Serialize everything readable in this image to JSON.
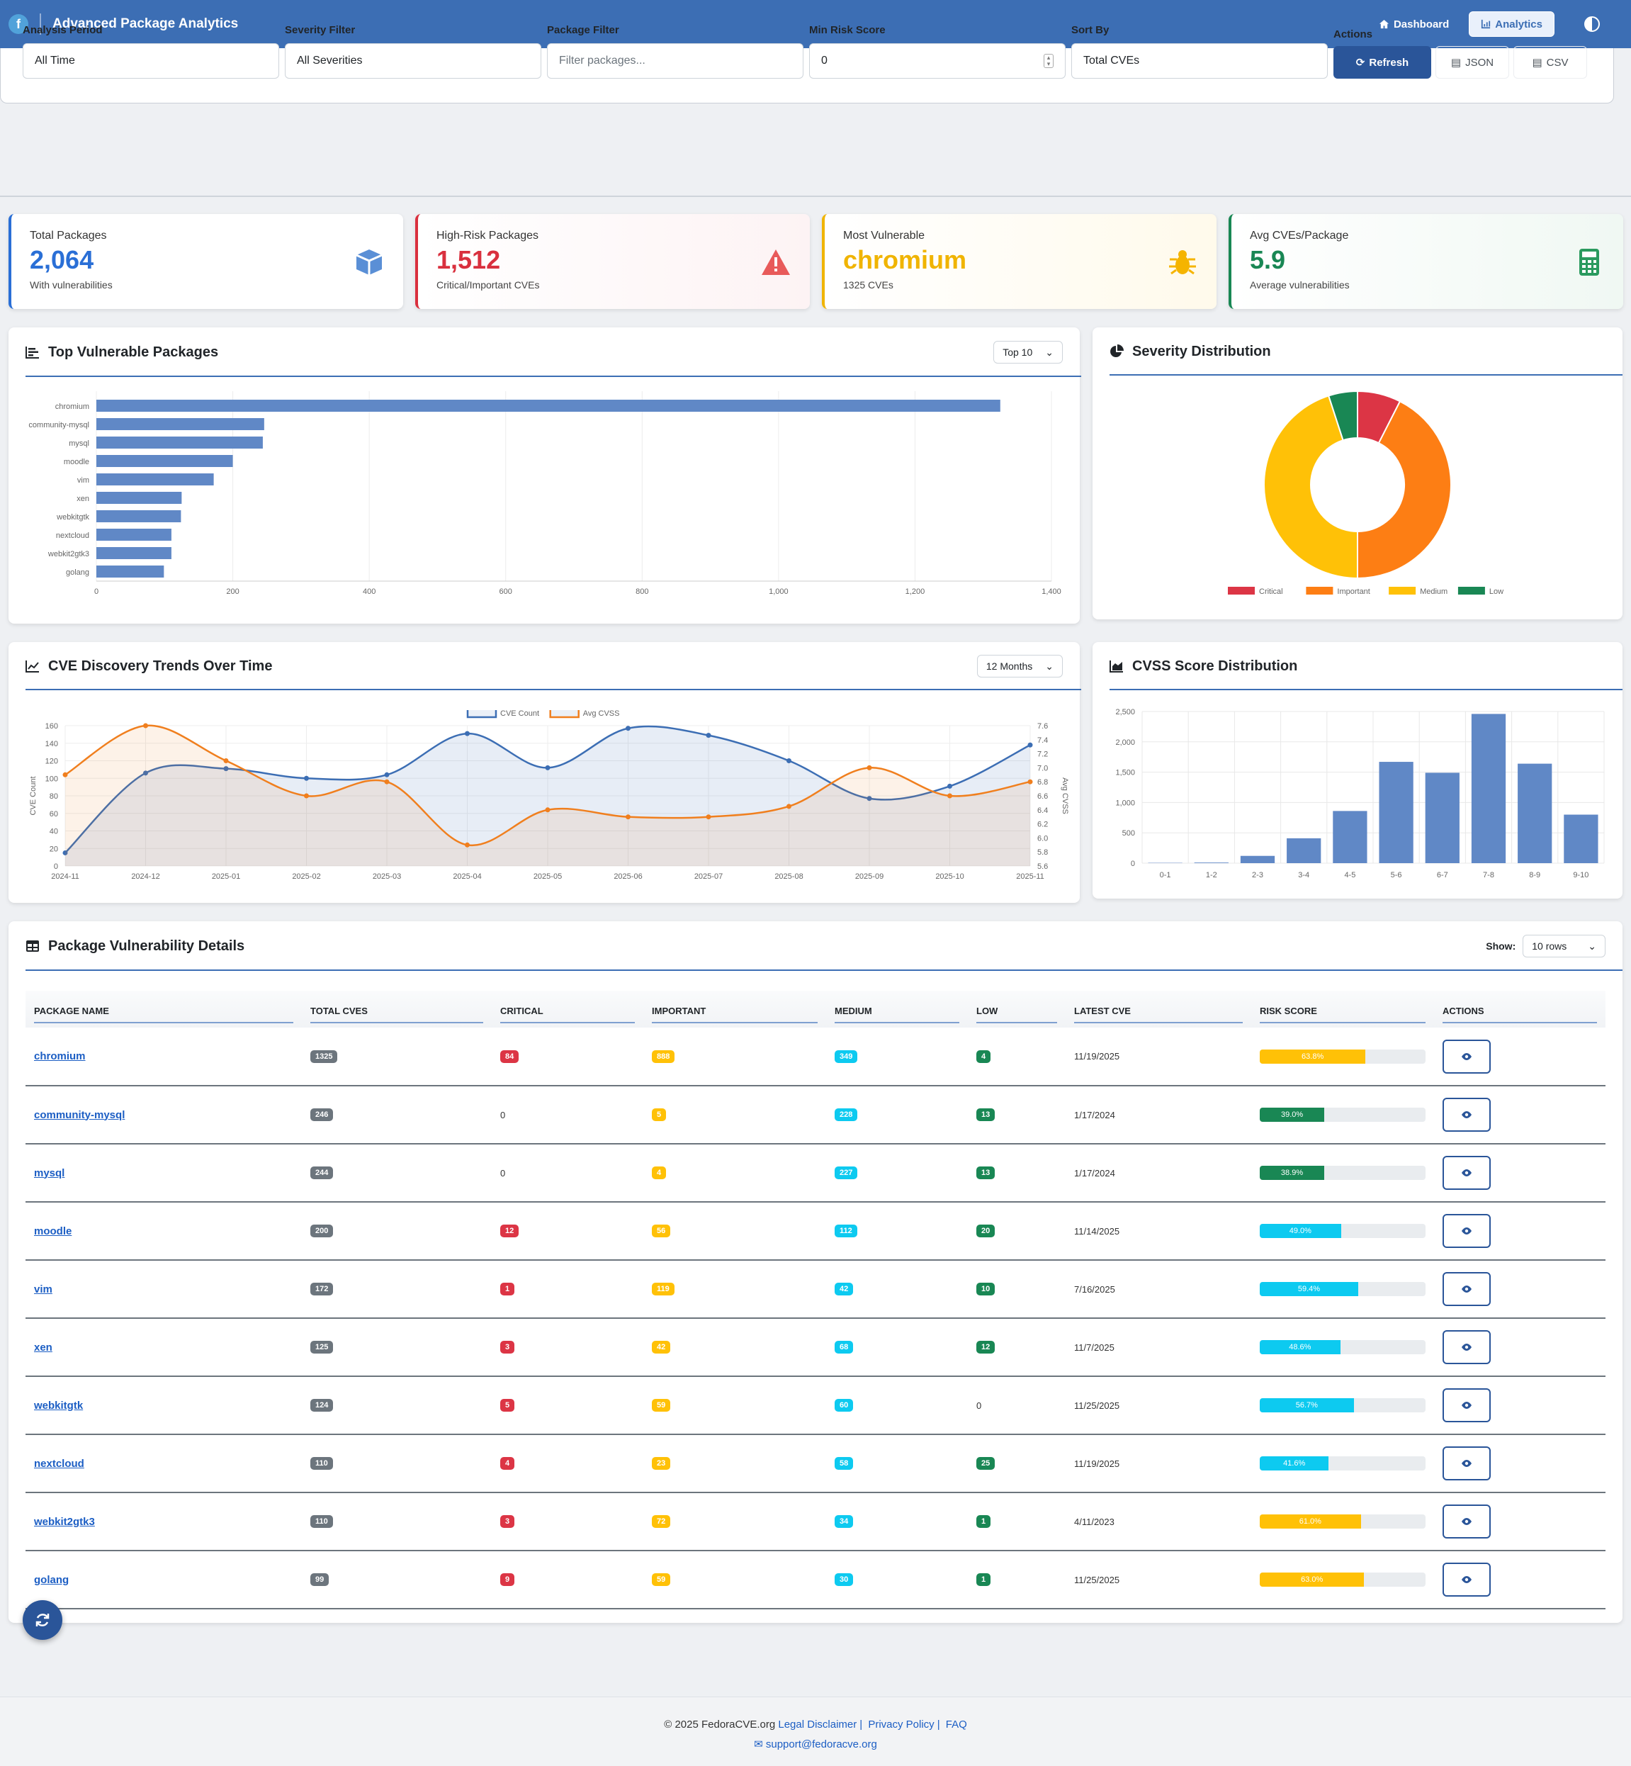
{
  "nav": {
    "title": "Advanced Package Analytics",
    "dashboard": "Dashboard",
    "analytics": "Analytics"
  },
  "filters": {
    "period_label": "Analysis Period",
    "period_value": "All Time",
    "severity_label": "Severity Filter",
    "severity_value": "All Severities",
    "package_label": "Package Filter",
    "package_placeholder": "Filter packages...",
    "risk_label": "Min Risk Score",
    "risk_value": "0",
    "sort_label": "Sort By",
    "sort_value": "Total CVEs",
    "actions_label": "Actions",
    "refresh": "Refresh",
    "json": "JSON",
    "csv": "CSV"
  },
  "stats": [
    {
      "title": "Total Packages",
      "value": "2,064",
      "sub": "With vulnerabilities",
      "color": "#2a6fd6"
    },
    {
      "title": "High-Risk Packages",
      "value": "1,512",
      "sub": "Critical/Important CVEs",
      "color": "#d9303e"
    },
    {
      "title": "Most Vulnerable",
      "value": "chromium",
      "sub": "1325 CVEs",
      "color": "#f0b400"
    },
    {
      "title": "Avg CVEs/Package",
      "value": "5.9",
      "sub": "Average vulnerabilities",
      "color": "#198754"
    }
  ],
  "top_packages": {
    "title": "Top Vulnerable Packages",
    "select": "Top 10",
    "chart_data": {
      "type": "bar",
      "orientation": "horizontal",
      "categories": [
        "chromium",
        "community-mysql",
        "mysql",
        "moodle",
        "vim",
        "xen",
        "webkitgtk",
        "nextcloud",
        "webkit2gtk3",
        "golang"
      ],
      "values": [
        1325,
        246,
        244,
        200,
        172,
        125,
        124,
        110,
        110,
        99
      ],
      "xlim": [
        0,
        1400
      ],
      "xticks": [
        "0",
        "200",
        "400",
        "600",
        "800",
        "1,000",
        "1,200",
        "1,400"
      ],
      "color": "#6088c6"
    }
  },
  "severity": {
    "title": "Severity Distribution",
    "chart_data": {
      "type": "pie",
      "donut": true,
      "labels": [
        "Critical",
        "Important",
        "Medium",
        "Low"
      ],
      "values": [
        7.5,
        42.5,
        45,
        5
      ],
      "colors": [
        "#dc3545",
        "#fd7e14",
        "#ffc107",
        "#198754"
      ]
    }
  },
  "trends": {
    "title": "CVE Discovery Trends Over Time",
    "select": "12 Months",
    "chart_data": {
      "type": "line",
      "x": [
        "2024-11",
        "2024-12",
        "2025-01",
        "2025-02",
        "2025-03",
        "2025-04",
        "2025-05",
        "2025-06",
        "2025-07",
        "2025-08",
        "2025-09",
        "2025-10",
        "2025-11"
      ],
      "series": [
        {
          "name": "CVE Count",
          "axis": "left",
          "values": [
            15,
            106,
            111,
            100,
            104,
            151,
            112,
            157,
            149,
            120,
            77,
            91,
            138
          ],
          "color": "#3c6eb4"
        },
        {
          "name": "Avg CVSS",
          "axis": "right",
          "values": [
            6.9,
            7.6,
            7.1,
            6.6,
            6.8,
            5.9,
            6.4,
            6.3,
            6.3,
            6.45,
            7.0,
            6.6,
            6.8
          ],
          "color": "#f07f1e"
        }
      ],
      "ylabel": "CVE Count",
      "y2label": "Avg CVSS",
      "ylim": [
        0,
        160
      ],
      "yticks": [
        "0",
        "20",
        "40",
        "60",
        "80",
        "100",
        "120",
        "140",
        "160"
      ],
      "y2lim": [
        5.6,
        7.6
      ],
      "y2ticks": [
        "5.6",
        "5.8",
        "6.0",
        "6.2",
        "6.4",
        "6.6",
        "6.8",
        "7.0",
        "7.2",
        "7.4",
        "7.6"
      ]
    }
  },
  "cvss": {
    "title": "CVSS Score Distribution",
    "chart_data": {
      "type": "bar",
      "categories": [
        "0-1",
        "1-2",
        "2-3",
        "3-4",
        "4-5",
        "5-6",
        "6-7",
        "7-8",
        "8-9",
        "9-10"
      ],
      "values": [
        5,
        10,
        120,
        410,
        860,
        1670,
        1490,
        2460,
        1640,
        800
      ],
      "ylim": [
        0,
        2500
      ],
      "yticks": [
        "0",
        "500",
        "1,000",
        "1,500",
        "2,000",
        "2,500"
      ],
      "color": "#6088c6"
    }
  },
  "details": {
    "title": "Package Vulnerability Details",
    "show_label": "Show:",
    "show_value": "10 rows",
    "columns": [
      "PACKAGE NAME",
      "TOTAL CVES",
      "CRITICAL",
      "IMPORTANT",
      "MEDIUM",
      "LOW",
      "LATEST CVE",
      "RISK SCORE",
      "ACTIONS"
    ],
    "rows": [
      {
        "name": "chromium",
        "total": "1325",
        "critical": "84",
        "important": "888",
        "medium": "349",
        "low": "4",
        "latest": "11/19/2025",
        "risk": "63.8%",
        "risk_val": 63.8,
        "risk_color": "#ffc107"
      },
      {
        "name": "community-mysql",
        "total": "246",
        "critical": "0",
        "important": "5",
        "medium": "228",
        "low": "13",
        "latest": "1/17/2024",
        "risk": "39.0%",
        "risk_val": 39.0,
        "risk_color": "#198754"
      },
      {
        "name": "mysql",
        "total": "244",
        "critical": "0",
        "important": "4",
        "medium": "227",
        "low": "13",
        "latest": "1/17/2024",
        "risk": "38.9%",
        "risk_val": 38.9,
        "risk_color": "#198754"
      },
      {
        "name": "moodle",
        "total": "200",
        "critical": "12",
        "important": "56",
        "medium": "112",
        "low": "20",
        "latest": "11/14/2025",
        "risk": "49.0%",
        "risk_val": 49.0,
        "risk_color": "#0dcaf0"
      },
      {
        "name": "vim",
        "total": "172",
        "critical": "1",
        "important": "119",
        "medium": "42",
        "low": "10",
        "latest": "7/16/2025",
        "risk": "59.4%",
        "risk_val": 59.4,
        "risk_color": "#0dcaf0"
      },
      {
        "name": "xen",
        "total": "125",
        "critical": "3",
        "important": "42",
        "medium": "68",
        "low": "12",
        "latest": "11/7/2025",
        "risk": "48.6%",
        "risk_val": 48.6,
        "risk_color": "#0dcaf0"
      },
      {
        "name": "webkitgtk",
        "total": "124",
        "critical": "5",
        "important": "59",
        "medium": "60",
        "low": "0",
        "latest": "11/25/2025",
        "risk": "56.7%",
        "risk_val": 56.7,
        "risk_color": "#0dcaf0"
      },
      {
        "name": "nextcloud",
        "total": "110",
        "critical": "4",
        "important": "23",
        "medium": "58",
        "low": "25",
        "latest": "11/19/2025",
        "risk": "41.6%",
        "risk_val": 41.6,
        "risk_color": "#0dcaf0"
      },
      {
        "name": "webkit2gtk3",
        "total": "110",
        "critical": "3",
        "important": "72",
        "medium": "34",
        "low": "1",
        "latest": "4/11/2023",
        "risk": "61.0%",
        "risk_val": 61.0,
        "risk_color": "#ffc107"
      },
      {
        "name": "golang",
        "total": "99",
        "critical": "9",
        "important": "59",
        "medium": "30",
        "low": "1",
        "latest": "11/25/2025",
        "risk": "63.0%",
        "risk_val": 63.0,
        "risk_color": "#ffc107"
      }
    ]
  },
  "footer": {
    "copyright": "© 2025 FedoraCVE.org",
    "legal": "Legal Disclaimer",
    "privacy": "Privacy Policy",
    "faq": "FAQ",
    "email": "support@fedoracve.org"
  }
}
